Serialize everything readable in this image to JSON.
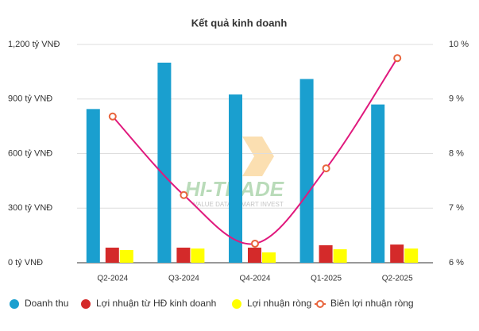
{
  "chart_data": {
    "type": "bar-line",
    "title": "Kết quả kinh doanh",
    "watermark": {
      "brand": "HI-TRADE",
      "slogan": "VALUE DATA - SMART INVEST"
    },
    "categories": [
      "Q2-2024",
      "Q3-2024",
      "Q4-2024",
      "Q1-2025",
      "Q2-2025"
    ],
    "series": [
      {
        "name": "Doanh thu",
        "color": "#1a9fcf",
        "values": [
          845,
          1100,
          925,
          1010,
          870
        ]
      },
      {
        "name": "Lợi nhuận từ HĐ kinh doanh",
        "color": "#d42a2a",
        "values": [
          83,
          83,
          83,
          96,
          100
        ]
      },
      {
        "name": "Lợi nhuận ròng",
        "color": "#ffff00",
        "values": [
          70,
          78,
          57,
          74,
          78
        ]
      },
      {
        "name": "Biên lợi nhuận ròng",
        "color": "#e0197d",
        "marker_color": "#e8643c",
        "axis": "y2",
        "values": [
          8.68,
          7.24,
          6.35,
          7.73,
          9.75
        ]
      }
    ],
    "ylim": [
      0,
      1200
    ],
    "yticks": [
      {
        "value": 0,
        "label": "0 tỷ VNĐ"
      },
      {
        "value": 300,
        "label": "300 tỷ VNĐ"
      },
      {
        "value": 600,
        "label": "600 tỷ VNĐ"
      },
      {
        "value": 900,
        "label": "900 tỷ VNĐ"
      },
      {
        "value": 1200,
        "label": "1,200 tỷ VNĐ"
      }
    ],
    "y2lim": [
      6,
      10
    ],
    "y2ticks": [
      {
        "value": 6,
        "label": "6 %"
      },
      {
        "value": 7,
        "label": "7 %"
      },
      {
        "value": 8,
        "label": "8 %"
      },
      {
        "value": 9,
        "label": "9 %"
      },
      {
        "value": 10,
        "label": "10 %"
      }
    ],
    "grid": true
  }
}
